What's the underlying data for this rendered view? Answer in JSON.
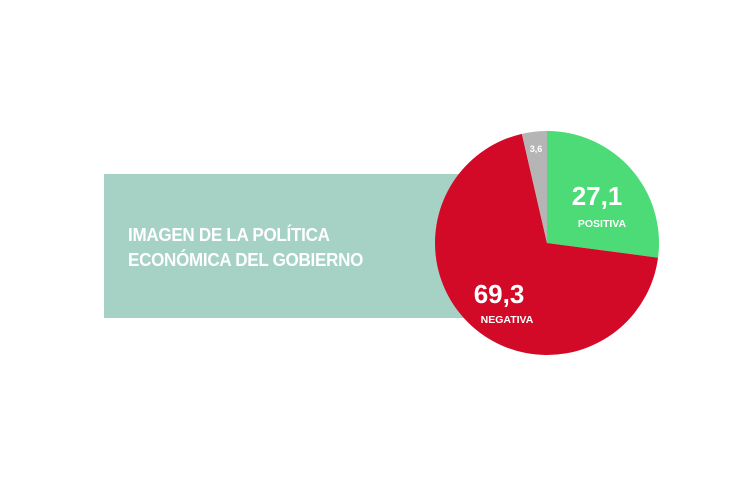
{
  "title": {
    "line1": "IMAGEN DE LA POLÍTICA",
    "line2": "ECONÓMICA DEL GOBIERNO"
  },
  "chart_data": {
    "type": "pie",
    "title": "IMAGEN DE LA POLÍTICA ECONÓMICA DEL GOBIERNO",
    "start_angle_deg": 0,
    "direction": "clockwise",
    "slices": [
      {
        "label": "POSITIVA",
        "value": 27.1,
        "value_text": "27,1",
        "color": "#4cdb76"
      },
      {
        "label": "NEGATIVA",
        "value": 69.3,
        "value_text": "69,3",
        "color": "#d20a28"
      },
      {
        "label": "",
        "value": 3.6,
        "value_text": "3,6",
        "color": "#b5b5b5"
      }
    ]
  }
}
